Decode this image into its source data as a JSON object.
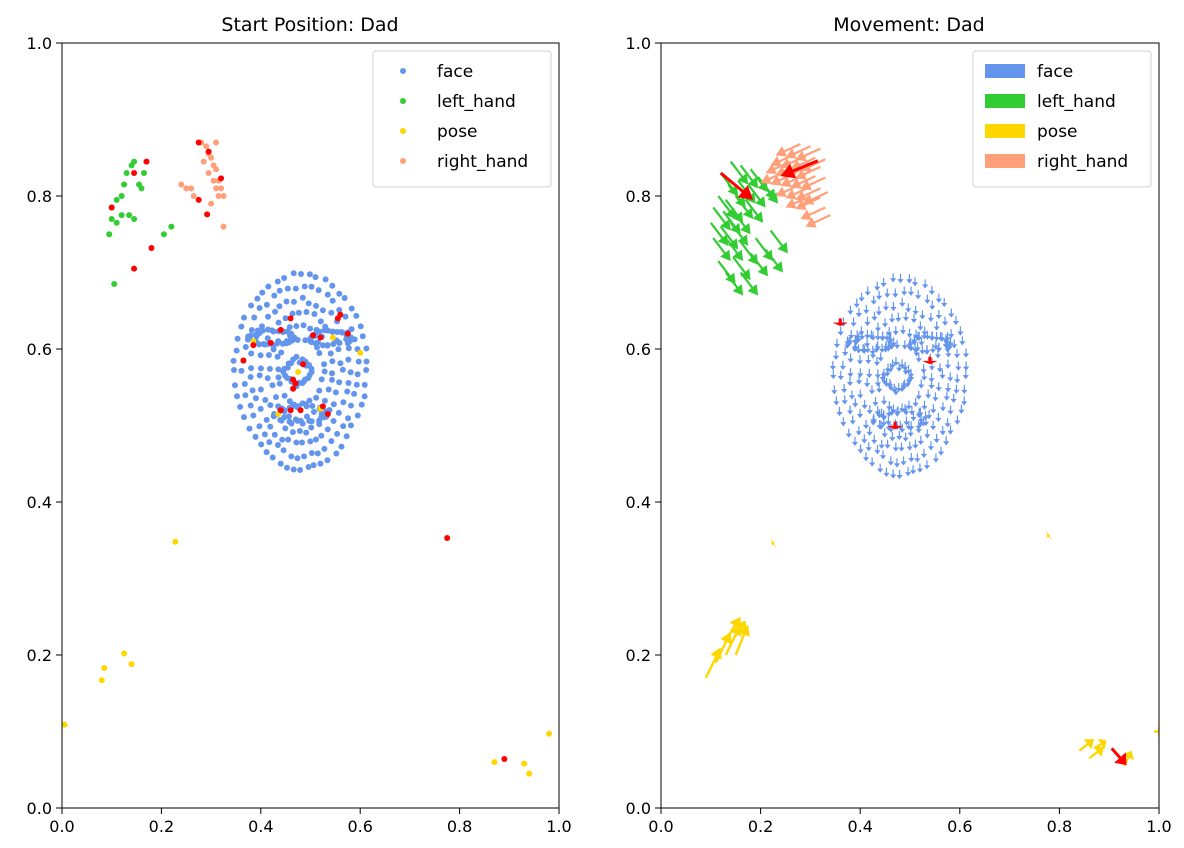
{
  "colors": {
    "face": "#6495ED",
    "left_hand": "#32CD32",
    "pose": "#FFD700",
    "right_hand": "#FFA07A",
    "highlight": "#FF0000"
  },
  "chart_data": [
    {
      "type": "scatter",
      "title": "Start Position: Dad",
      "xlim": [
        0,
        1
      ],
      "ylim": [
        0,
        1
      ],
      "xticks": [
        "0.0",
        "0.2",
        "0.4",
        "0.6",
        "0.8",
        "1.0"
      ],
      "yticks": [
        "0.0",
        "0.2",
        "0.4",
        "0.6",
        "0.8",
        "1.0"
      ],
      "grid": false,
      "legend": {
        "placement": "top-right",
        "entries": [
          "face",
          "left_hand",
          "pose",
          "right_hand"
        ]
      },
      "face": {
        "cx": 0.48,
        "cy": 0.57,
        "rx": 0.135,
        "ry": 0.125,
        "pupils": [
          [
            0.415,
            0.61
          ],
          [
            0.545,
            0.61
          ]
        ],
        "mouth": [
          0.485,
          0.515
        ],
        "nose": [
          0.475,
          0.57
        ]
      },
      "series": [
        {
          "name": "left_hand",
          "points": [
            [
              0.095,
              0.75
            ],
            [
              0.1,
              0.77
            ],
            [
              0.1,
              0.785
            ],
            [
              0.11,
              0.795
            ],
            [
              0.12,
              0.8
            ],
            [
              0.125,
              0.815
            ],
            [
              0.13,
              0.83
            ],
            [
              0.14,
              0.84
            ],
            [
              0.145,
              0.845
            ],
            [
              0.155,
              0.815
            ],
            [
              0.165,
              0.83
            ],
            [
              0.12,
              0.775
            ],
            [
              0.135,
              0.775
            ],
            [
              0.11,
              0.765
            ],
            [
              0.145,
              0.77
            ],
            [
              0.16,
              0.81
            ],
            [
              0.205,
              0.75
            ],
            [
              0.22,
              0.76
            ],
            [
              0.105,
              0.685
            ]
          ]
        },
        {
          "name": "right_hand",
          "points": [
            [
              0.28,
              0.87
            ],
            [
              0.29,
              0.865
            ],
            [
              0.295,
              0.855
            ],
            [
              0.3,
              0.85
            ],
            [
              0.305,
              0.84
            ],
            [
              0.31,
              0.835
            ],
            [
              0.315,
              0.82
            ],
            [
              0.32,
              0.81
            ],
            [
              0.325,
              0.8
            ],
            [
              0.285,
              0.845
            ],
            [
              0.295,
              0.83
            ],
            [
              0.305,
              0.82
            ],
            [
              0.31,
              0.81
            ],
            [
              0.31,
              0.87
            ],
            [
              0.3,
              0.79
            ],
            [
              0.265,
              0.8
            ],
            [
              0.26,
              0.81
            ],
            [
              0.24,
              0.815
            ],
            [
              0.25,
              0.81
            ],
            [
              0.325,
              0.76
            ],
            [
              0.315,
              0.8
            ]
          ]
        },
        {
          "name": "pose",
          "points": [
            [
              0.228,
              0.348
            ],
            [
              0.005,
              0.109
            ],
            [
              0.085,
              0.183
            ],
            [
              0.08,
              0.167
            ],
            [
              0.125,
              0.202
            ],
            [
              0.14,
              0.188
            ],
            [
              0.87,
              0.06
            ],
            [
              0.93,
              0.058
            ],
            [
              0.94,
              0.045
            ],
            [
              0.98,
              0.097
            ],
            [
              0.6,
              0.595
            ],
            [
              0.435,
              0.515
            ],
            [
              0.52,
              0.522
            ],
            [
              0.385,
              0.61
            ],
            [
              0.545,
              0.615
            ],
            [
              0.475,
              0.57
            ]
          ]
        },
        {
          "name": "highlight",
          "points": [
            [
              0.1,
              0.785
            ],
            [
              0.145,
              0.83
            ],
            [
              0.17,
              0.845
            ],
            [
              0.18,
              0.732
            ],
            [
              0.145,
              0.705
            ],
            [
              0.275,
              0.87
            ],
            [
              0.295,
              0.858
            ],
            [
              0.32,
              0.823
            ],
            [
              0.275,
              0.795
            ],
            [
              0.292,
              0.776
            ],
            [
              0.775,
              0.353
            ],
            [
              0.89,
              0.064
            ],
            [
              0.385,
              0.605
            ],
            [
              0.42,
              0.608
            ],
            [
              0.44,
              0.625
            ],
            [
              0.46,
              0.64
            ],
            [
              0.365,
              0.585
            ],
            [
              0.505,
              0.618
            ],
            [
              0.52,
              0.615
            ],
            [
              0.555,
              0.64
            ],
            [
              0.56,
              0.645
            ],
            [
              0.575,
              0.62
            ],
            [
              0.485,
              0.58
            ],
            [
              0.465,
              0.56
            ],
            [
              0.47,
              0.555
            ],
            [
              0.465,
              0.548
            ],
            [
              0.44,
              0.52
            ],
            [
              0.46,
              0.52
            ],
            [
              0.48,
              0.52
            ],
            [
              0.525,
              0.525
            ],
            [
              0.535,
              0.515
            ]
          ]
        }
      ]
    },
    {
      "type": "quiver",
      "title": "Movement: Dad",
      "xlim": [
        0,
        1
      ],
      "ylim": [
        0,
        1
      ],
      "xticks": [
        "0.0",
        "0.2",
        "0.4",
        "0.6",
        "0.8",
        "1.0"
      ],
      "yticks": [
        "0.0",
        "0.2",
        "0.4",
        "0.6",
        "0.8",
        "1.0"
      ],
      "grid": false,
      "legend": {
        "placement": "top-right",
        "entries": [
          "face",
          "left_hand",
          "pose",
          "right_hand"
        ]
      },
      "face": {
        "cx": 0.48,
        "cy": 0.57,
        "rx": 0.135,
        "ry": 0.125,
        "dx": 0,
        "dy": -0.012
      },
      "series": [
        {
          "name": "left_hand",
          "dx": 0.035,
          "dy": -0.03,
          "points": [
            [
              0.12,
              0.83
            ],
            [
              0.14,
              0.845
            ],
            [
              0.16,
              0.84
            ],
            [
              0.18,
              0.835
            ],
            [
              0.195,
              0.825
            ],
            [
              0.2,
              0.82
            ],
            [
              0.135,
              0.815
            ],
            [
              0.155,
              0.82
            ],
            [
              0.175,
              0.815
            ],
            [
              0.115,
              0.8
            ],
            [
              0.13,
              0.795
            ],
            [
              0.15,
              0.8
            ],
            [
              0.17,
              0.795
            ],
            [
              0.105,
              0.785
            ],
            [
              0.125,
              0.78
            ],
            [
              0.145,
              0.78
            ],
            [
              0.1,
              0.765
            ],
            [
              0.12,
              0.76
            ],
            [
              0.14,
              0.765
            ],
            [
              0.105,
              0.745
            ],
            [
              0.13,
              0.745
            ],
            [
              0.16,
              0.74
            ],
            [
              0.19,
              0.745
            ],
            [
              0.22,
              0.755
            ],
            [
              0.115,
              0.715
            ],
            [
              0.145,
              0.72
            ],
            [
              0.18,
              0.725
            ],
            [
              0.21,
              0.73
            ],
            [
              0.13,
              0.7
            ],
            [
              0.16,
              0.7
            ]
          ]
        },
        {
          "name": "right_hand",
          "dx": -0.05,
          "dy": -0.015,
          "points": [
            [
              0.28,
              0.868
            ],
            [
              0.3,
              0.865
            ],
            [
              0.32,
              0.862
            ],
            [
              0.27,
              0.855
            ],
            [
              0.29,
              0.852
            ],
            [
              0.31,
              0.85
            ],
            [
              0.33,
              0.848
            ],
            [
              0.26,
              0.845
            ],
            [
              0.28,
              0.842
            ],
            [
              0.3,
              0.84
            ],
            [
              0.32,
              0.838
            ],
            [
              0.25,
              0.832
            ],
            [
              0.27,
              0.83
            ],
            [
              0.29,
              0.828
            ],
            [
              0.31,
              0.826
            ],
            [
              0.33,
              0.824
            ],
            [
              0.28,
              0.815
            ],
            [
              0.3,
              0.812
            ],
            [
              0.32,
              0.81
            ],
            [
              0.3,
              0.8
            ],
            [
              0.32,
              0.798
            ],
            [
              0.335,
              0.805
            ],
            [
              0.33,
              0.785
            ],
            [
              0.34,
              0.775
            ]
          ]
        },
        {
          "name": "pose",
          "points": [
            [
              0.09,
              0.17,
              0.03,
              0.04
            ],
            [
              0.11,
              0.19,
              0.03,
              0.04
            ],
            [
              0.13,
              0.2,
              0.03,
              0.04
            ],
            [
              0.15,
              0.2,
              0.025,
              0.04
            ],
            [
              0.13,
              0.22,
              0.03,
              0.03
            ],
            [
              0.15,
              0.225,
              0.02,
              0.02
            ],
            [
              0.84,
              0.075,
              0.03,
              0.015
            ],
            [
              0.86,
              0.065,
              0.03,
              0.015
            ],
            [
              0.87,
              0.078,
              0.025,
              0.01
            ],
            [
              0.93,
              0.055,
              0.015,
              0.02
            ],
            [
              0.99,
              0.1,
              0.015,
              0.0
            ],
            [
              0.222,
              0.345,
              0.005,
              0.002
            ],
            [
              0.775,
              0.355,
              0.005,
              0.002
            ]
          ]
        },
        {
          "name": "highlight",
          "points": [
            [
              0.12,
              0.83,
              0.065,
              -0.035
            ],
            [
              0.315,
              0.846,
              -0.075,
              -0.02
            ],
            [
              0.905,
              0.078,
              0.03,
              -0.022
            ],
            [
              0.36,
              0.64,
              0.0,
              -0.01
            ],
            [
              0.54,
              0.59,
              0.0,
              -0.01
            ],
            [
              0.47,
              0.505,
              0.0,
              -0.01
            ]
          ]
        }
      ]
    }
  ]
}
